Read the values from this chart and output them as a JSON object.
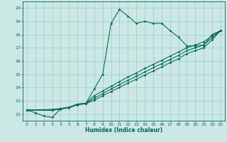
{
  "title": "",
  "xlabel": "Humidex (Indice chaleur)",
  "ylabel": "",
  "xlim": [
    -0.5,
    23.5
  ],
  "ylim": [
    11.5,
    20.5
  ],
  "xticks": [
    0,
    1,
    2,
    3,
    4,
    5,
    6,
    7,
    8,
    9,
    10,
    11,
    12,
    13,
    14,
    15,
    16,
    17,
    18,
    19,
    20,
    21,
    22,
    23
  ],
  "yticks": [
    12,
    13,
    14,
    15,
    16,
    17,
    18,
    19,
    20
  ],
  "background_color": "#cce8e4",
  "grid_color": "#99ccc8",
  "line_color": "#006655",
  "series1": [
    [
      0,
      12.3
    ],
    [
      1,
      12.1
    ],
    [
      2,
      11.85
    ],
    [
      3,
      11.75
    ],
    [
      4,
      12.4
    ],
    [
      5,
      12.5
    ],
    [
      6,
      12.75
    ],
    [
      7,
      12.8
    ],
    [
      8,
      13.9
    ],
    [
      9,
      15.0
    ],
    [
      10,
      18.85
    ],
    [
      11,
      19.9
    ],
    [
      12,
      19.4
    ],
    [
      13,
      18.85
    ],
    [
      14,
      19.0
    ],
    [
      15,
      18.85
    ],
    [
      16,
      18.85
    ],
    [
      17,
      18.3
    ],
    [
      18,
      17.8
    ],
    [
      19,
      17.15
    ],
    [
      20,
      17.15
    ],
    [
      21,
      17.2
    ],
    [
      22,
      18.0
    ],
    [
      23,
      18.3
    ]
  ],
  "series2": [
    [
      0,
      12.3
    ],
    [
      3,
      12.35
    ],
    [
      4,
      12.42
    ],
    [
      5,
      12.52
    ],
    [
      6,
      12.75
    ],
    [
      7,
      12.82
    ],
    [
      8,
      13.4
    ],
    [
      9,
      13.75
    ],
    [
      10,
      14.1
    ],
    [
      11,
      14.45
    ],
    [
      12,
      14.8
    ],
    [
      13,
      15.1
    ],
    [
      14,
      15.45
    ],
    [
      15,
      15.75
    ],
    [
      16,
      16.05
    ],
    [
      17,
      16.38
    ],
    [
      18,
      16.68
    ],
    [
      19,
      17.0
    ],
    [
      20,
      17.22
    ],
    [
      21,
      17.45
    ],
    [
      22,
      17.9
    ],
    [
      23,
      18.3
    ]
  ],
  "series3": [
    [
      0,
      12.3
    ],
    [
      3,
      12.32
    ],
    [
      4,
      12.4
    ],
    [
      5,
      12.5
    ],
    [
      6,
      12.72
    ],
    [
      7,
      12.8
    ],
    [
      8,
      13.2
    ],
    [
      9,
      13.55
    ],
    [
      10,
      13.9
    ],
    [
      11,
      14.22
    ],
    [
      12,
      14.55
    ],
    [
      13,
      14.85
    ],
    [
      14,
      15.18
    ],
    [
      15,
      15.5
    ],
    [
      16,
      15.8
    ],
    [
      17,
      16.12
    ],
    [
      18,
      16.42
    ],
    [
      19,
      16.78
    ],
    [
      20,
      17.0
    ],
    [
      21,
      17.22
    ],
    [
      22,
      17.75
    ],
    [
      23,
      18.3
    ]
  ],
  "series4": [
    [
      0,
      12.3
    ],
    [
      3,
      12.28
    ],
    [
      4,
      12.38
    ],
    [
      5,
      12.48
    ],
    [
      6,
      12.7
    ],
    [
      7,
      12.78
    ],
    [
      8,
      13.05
    ],
    [
      9,
      13.38
    ],
    [
      10,
      13.7
    ],
    [
      11,
      14.02
    ],
    [
      12,
      14.34
    ],
    [
      13,
      14.63
    ],
    [
      14,
      14.95
    ],
    [
      15,
      15.25
    ],
    [
      16,
      15.55
    ],
    [
      17,
      15.88
    ],
    [
      18,
      16.18
    ],
    [
      19,
      16.56
    ],
    [
      20,
      16.78
    ],
    [
      21,
      17.0
    ],
    [
      22,
      17.6
    ],
    [
      23,
      18.3
    ]
  ]
}
